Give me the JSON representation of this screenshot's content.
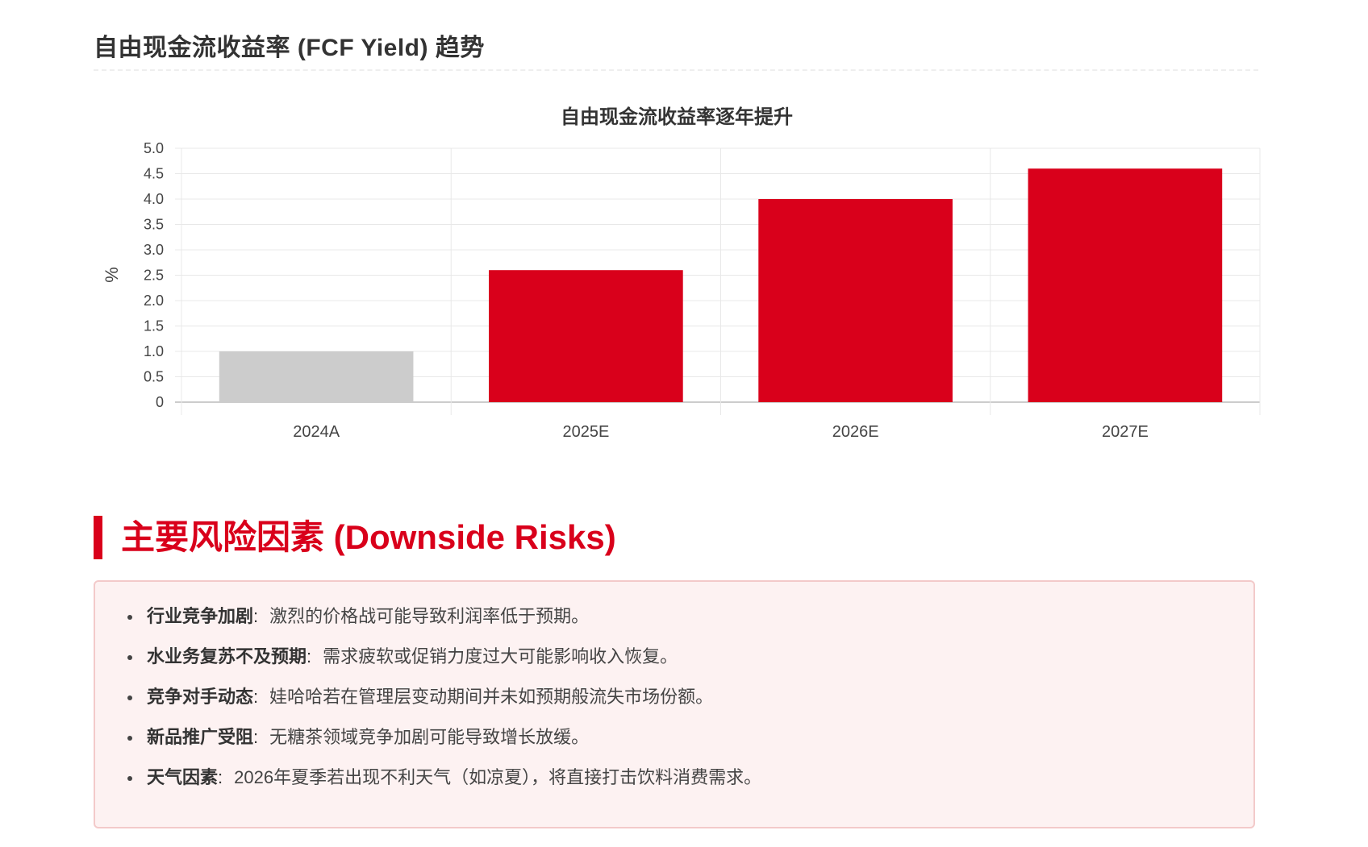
{
  "page": {
    "section_title": "自由现金流收益率 (FCF Yield) 趋势"
  },
  "chart_data": {
    "type": "bar",
    "title": "自由现金流收益率逐年提升",
    "xlabel": "",
    "ylabel": "%",
    "categories": [
      "2024A",
      "2025E",
      "2026E",
      "2027E"
    ],
    "values": [
      1.0,
      2.6,
      4.0,
      4.6
    ],
    "bar_colors": [
      "#cccccc",
      "#d9001b",
      "#d9001b",
      "#d9001b"
    ],
    "ylim": [
      0,
      5.0
    ],
    "yticks": [
      "0",
      "0.5",
      "1.0",
      "1.5",
      "2.0",
      "2.5",
      "3.0",
      "3.5",
      "4.0",
      "4.5",
      "5.0"
    ],
    "grid": true,
    "legend": "none"
  },
  "risks": {
    "title": "主要风险因素 (Downside Risks)",
    "accent_color": "#d9001b",
    "items": [
      {
        "label": "行业竞争加剧",
        "sep": ":",
        "text": "激烈的价格战可能导致利润率低于预期。"
      },
      {
        "label": "水业务复苏不及预期",
        "sep": ":",
        "text": "需求疲软或促销力度过大可能影响收入恢复。"
      },
      {
        "label": "竞争对手动态",
        "sep": ":",
        "text": "娃哈哈若在管理层变动期间并未如预期般流失市场份额。"
      },
      {
        "label": "新品推广受阻",
        "sep": ":",
        "text": "无糖茶领域竞争加剧可能导致增长放缓。"
      },
      {
        "label": "天气因素",
        "sep": ":",
        "text": "2026年夏季若出现不利天气（如凉夏），将直接打击饮料消费需求。"
      }
    ]
  }
}
